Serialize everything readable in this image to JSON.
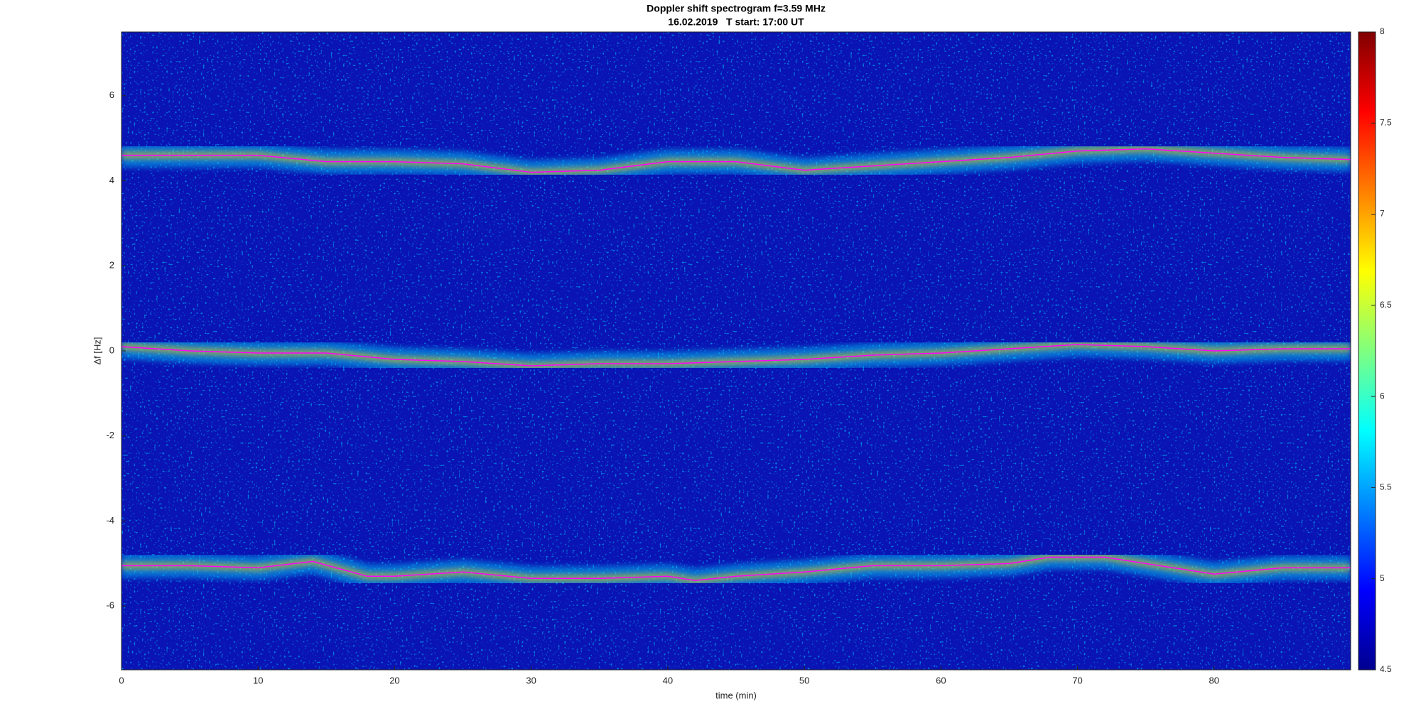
{
  "chart_data": {
    "type": "spectrogram",
    "title": "Doppler shift spectrogram f=3.59 MHz",
    "subtitle": "16.02.2019   T start: 17:00 UT",
    "xlabel": "time (min)",
    "ylabel": "Δf [Hz]",
    "xlim": [
      0,
      90
    ],
    "ylim": [
      -7.5,
      7.5
    ],
    "xticks": [
      0,
      10,
      20,
      30,
      40,
      50,
      60,
      70,
      80
    ],
    "yticks": [
      -6,
      -4,
      -2,
      0,
      2,
      4,
      6
    ],
    "clim": [
      4.5,
      8
    ],
    "cticks": [
      4.5,
      5,
      5.5,
      6,
      6.5,
      7,
      7.5,
      8
    ],
    "series": [
      {
        "color": "#ff00ff",
        "x": [
          0,
          5,
          10,
          15,
          20,
          25,
          30,
          35,
          40,
          45,
          50,
          55,
          60,
          65,
          70,
          75,
          80,
          85,
          90
        ],
        "values": [
          4.6,
          4.6,
          4.6,
          4.45,
          4.45,
          4.4,
          4.2,
          4.25,
          4.45,
          4.45,
          4.25,
          4.35,
          4.45,
          4.55,
          4.7,
          4.75,
          4.65,
          4.55,
          4.5
        ]
      },
      {
        "color": "#ff00ff",
        "x": [
          0,
          5,
          10,
          15,
          20,
          25,
          30,
          35,
          40,
          45,
          50,
          55,
          60,
          65,
          70,
          75,
          80,
          85,
          90
        ],
        "values": [
          0.1,
          0,
          -0.05,
          -0.05,
          -0.2,
          -0.25,
          -0.35,
          -0.3,
          -0.3,
          -0.25,
          -0.2,
          -0.1,
          -0.05,
          0.05,
          0.15,
          0.1,
          0,
          0.05,
          0.05
        ]
      },
      {
        "color": "#ff00ff",
        "x": [
          0,
          5,
          10,
          14,
          18,
          20,
          25,
          30,
          35,
          40,
          42,
          45,
          50,
          55,
          60,
          65,
          68,
          72,
          75,
          80,
          85,
          90
        ],
        "values": [
          -5.05,
          -5.05,
          -5.1,
          -4.95,
          -5.3,
          -5.3,
          -5.2,
          -5.35,
          -5.35,
          -5.3,
          -5.4,
          -5.3,
          -5.2,
          -5.05,
          -5.05,
          -5,
          -4.85,
          -4.85,
          -5,
          -5.25,
          -5.1,
          -5.1
        ]
      }
    ]
  }
}
